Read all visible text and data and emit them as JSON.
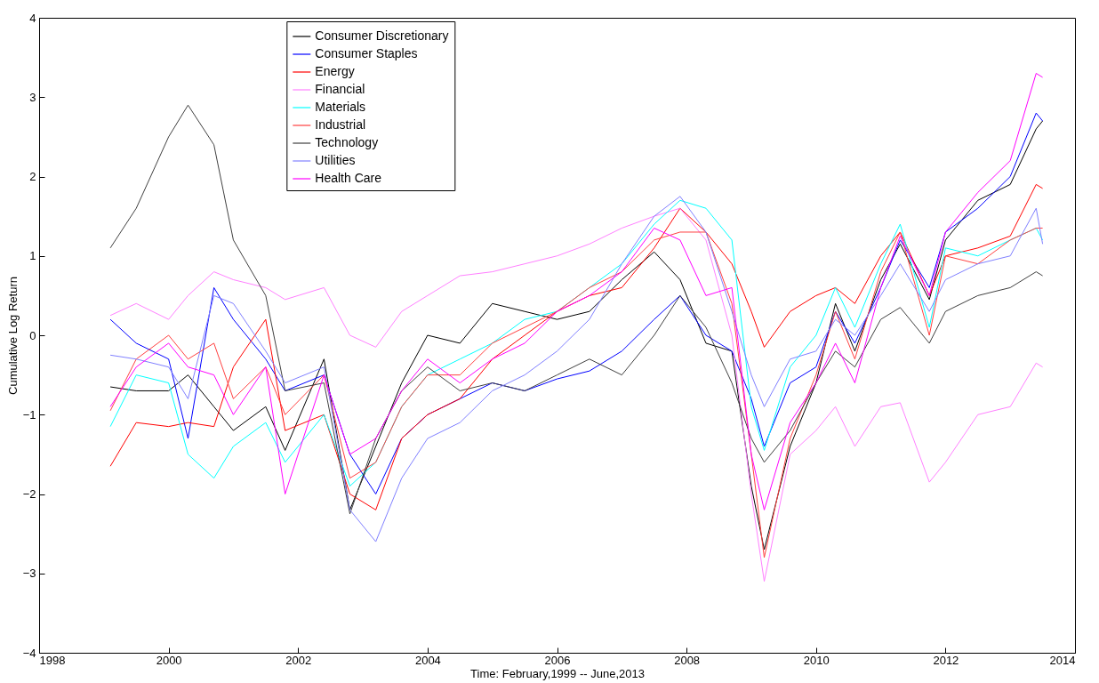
{
  "chart_data": {
    "type": "line",
    "xlabel": "Time: February,1999 -- June,2013",
    "ylabel": "Cumulative Log Return",
    "x": [
      1999.1,
      1999.5,
      2000.0,
      2000.3,
      2000.7,
      2001.0,
      2001.5,
      2001.8,
      2002.4,
      2002.8,
      2003.2,
      2003.6,
      2004.0,
      2004.5,
      2005.0,
      2005.5,
      2006.0,
      2006.5,
      2007.0,
      2007.5,
      2007.9,
      2008.3,
      2008.7,
      2009.0,
      2009.2,
      2009.6,
      2010.0,
      2010.3,
      2010.6,
      2011.0,
      2011.3,
      2011.75,
      2012.0,
      2012.5,
      2013.0,
      2013.4,
      2013.5
    ],
    "series": [
      {
        "name": "Consumer Discretionary",
        "color": "#000000",
        "values": [
          -0.65,
          -0.7,
          -0.7,
          -0.5,
          -0.9,
          -1.2,
          -0.9,
          -1.45,
          -0.3,
          -2.2,
          -1.4,
          -0.6,
          0.0,
          -0.1,
          0.4,
          0.3,
          0.2,
          0.3,
          0.7,
          1.05,
          0.7,
          -0.1,
          -0.2,
          -1.9,
          -2.7,
          -1.4,
          -0.6,
          0.4,
          -0.2,
          0.7,
          1.15,
          0.45,
          1.2,
          1.7,
          1.9,
          2.6,
          2.7
        ]
      },
      {
        "name": "Consumer Staples",
        "color": "#0000ff",
        "values": [
          0.2,
          -0.1,
          -0.3,
          -1.3,
          0.6,
          0.2,
          -0.3,
          -0.7,
          -0.5,
          -1.5,
          -2.0,
          -1.3,
          -1.0,
          -0.8,
          -0.6,
          -0.7,
          -0.55,
          -0.45,
          -0.2,
          0.2,
          0.5,
          0.0,
          -0.2,
          -0.8,
          -1.4,
          -0.6,
          -0.4,
          0.3,
          -0.1,
          0.6,
          1.2,
          0.6,
          1.3,
          1.6,
          2.0,
          2.8,
          2.7
        ]
      },
      {
        "name": "Energy",
        "color": "#ff0000",
        "values": [
          -1.65,
          -1.1,
          -1.15,
          -1.1,
          -1.15,
          -0.4,
          0.2,
          -1.2,
          -1.0,
          -2.0,
          -2.2,
          -1.3,
          -1.0,
          -0.8,
          -0.3,
          0.0,
          0.3,
          0.5,
          0.6,
          1.1,
          1.6,
          1.3,
          0.9,
          0.3,
          -0.15,
          0.3,
          0.5,
          0.6,
          0.4,
          1.0,
          1.3,
          0.5,
          1.0,
          1.1,
          1.25,
          1.9,
          1.85
        ]
      },
      {
        "name": "Financial",
        "color": "#ff80ff",
        "values": [
          0.25,
          0.4,
          0.2,
          0.5,
          0.8,
          0.7,
          0.6,
          0.45,
          0.6,
          0.0,
          -0.15,
          0.3,
          0.5,
          0.75,
          0.8,
          0.9,
          1.0,
          1.15,
          1.35,
          1.5,
          1.6,
          1.2,
          0.0,
          -2.0,
          -3.1,
          -1.5,
          -1.2,
          -0.9,
          -1.4,
          -0.9,
          -0.85,
          -1.85,
          -1.6,
          -1.0,
          -0.9,
          -0.35,
          -0.4
        ]
      },
      {
        "name": "Materials",
        "color": "#00ffff",
        "values": [
          -1.15,
          -0.5,
          -0.6,
          -1.5,
          -1.8,
          -1.4,
          -1.1,
          -1.6,
          -1.0,
          -1.9,
          -1.6,
          -0.9,
          -0.5,
          -0.3,
          -0.1,
          0.2,
          0.3,
          0.6,
          0.9,
          1.4,
          1.7,
          1.6,
          1.2,
          -0.9,
          -1.45,
          -0.4,
          0.0,
          0.6,
          0.1,
          0.9,
          1.4,
          0.1,
          1.1,
          1.0,
          1.2,
          1.35,
          1.2
        ]
      },
      {
        "name": "Industrial",
        "color": "#ff4040",
        "values": [
          -0.95,
          -0.3,
          0.0,
          -0.3,
          -0.1,
          -0.8,
          -0.4,
          -1.0,
          -0.5,
          -1.8,
          -1.6,
          -0.9,
          -0.5,
          -0.5,
          -0.1,
          0.1,
          0.3,
          0.6,
          0.8,
          1.2,
          1.3,
          1.3,
          0.4,
          -1.5,
          -2.8,
          -1.3,
          -0.5,
          0.3,
          -0.3,
          0.8,
          1.3,
          0.0,
          1.0,
          0.9,
          1.2,
          1.35,
          1.35
        ]
      },
      {
        "name": "Technology",
        "color": "#404040",
        "values": [
          1.1,
          1.6,
          2.5,
          2.9,
          2.4,
          1.2,
          0.5,
          -0.7,
          -0.6,
          -2.25,
          -1.3,
          -0.7,
          -0.4,
          -0.7,
          -0.6,
          -0.7,
          -0.5,
          -0.3,
          -0.5,
          0.0,
          0.5,
          0.1,
          -0.6,
          -1.3,
          -1.6,
          -1.2,
          -0.6,
          -0.2,
          -0.4,
          0.2,
          0.35,
          -0.1,
          0.3,
          0.5,
          0.6,
          0.8,
          0.75
        ]
      },
      {
        "name": "Utilities",
        "color": "#8080ff",
        "values": [
          -0.25,
          -0.3,
          -0.4,
          -0.8,
          0.5,
          0.4,
          -0.2,
          -0.6,
          -0.4,
          -2.2,
          -2.6,
          -1.8,
          -1.3,
          -1.1,
          -0.7,
          -0.5,
          -0.2,
          0.2,
          0.9,
          1.5,
          1.75,
          1.3,
          0.3,
          -0.5,
          -0.9,
          -0.3,
          -0.2,
          0.2,
          0.0,
          0.5,
          0.9,
          0.3,
          0.7,
          0.9,
          1.0,
          1.6,
          1.15
        ]
      },
      {
        "name": "Health Care",
        "color": "#ff00ff",
        "values": [
          -0.9,
          -0.4,
          -0.1,
          -0.4,
          -0.5,
          -1.0,
          -0.4,
          -2.0,
          -0.5,
          -1.5,
          -1.3,
          -0.7,
          -0.3,
          -0.6,
          -0.3,
          -0.1,
          0.3,
          0.5,
          0.8,
          1.35,
          1.2,
          0.5,
          0.6,
          -1.5,
          -2.2,
          -1.1,
          -0.6,
          -0.1,
          -0.6,
          0.6,
          1.25,
          0.5,
          1.3,
          1.8,
          2.2,
          3.3,
          3.25
        ]
      }
    ],
    "xlim": [
      1998,
      2014
    ],
    "xticks": [
      1998,
      2000,
      2002,
      2004,
      2006,
      2008,
      2010,
      2012,
      2014
    ],
    "ylim": [
      -4,
      4
    ],
    "yticks": [
      -4,
      -3,
      -2,
      -1,
      0,
      1,
      2,
      3,
      4
    ],
    "grid": false,
    "legend": "top left",
    "line_style": "solid"
  }
}
